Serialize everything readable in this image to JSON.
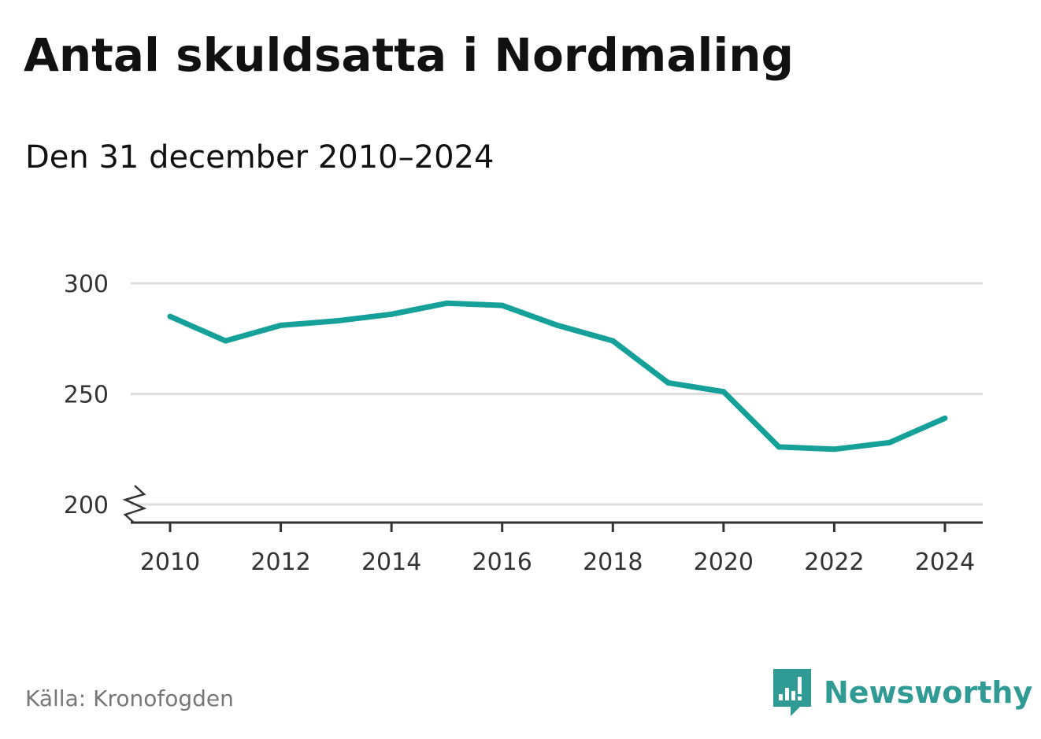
{
  "title": "Antal skuldsatta i Nordmaling",
  "subtitle": "Den 31 december 2010–2024",
  "source": "Källa: Kronofogden",
  "brand": {
    "name": "Newsworthy",
    "icon": "newsworthy-logo-icon",
    "color": "#2f9b94"
  },
  "colors": {
    "line": "#16a09a",
    "grid": "#dddddd",
    "axis": "#333333",
    "text": "#111111"
  },
  "chart_data": {
    "type": "line",
    "x": [
      2010,
      2011,
      2012,
      2013,
      2014,
      2015,
      2016,
      2017,
      2018,
      2019,
      2020,
      2021,
      2022,
      2023,
      2024
    ],
    "series": [
      {
        "values": [
          285,
          274,
          281,
          283,
          286,
          291,
          290,
          281,
          274,
          255,
          251,
          226,
          225,
          228,
          239
        ]
      }
    ],
    "xticks": [
      "2010",
      "2012",
      "2014",
      "2016",
      "2018",
      "2020",
      "2022",
      "2024"
    ],
    "yticks": [
      "200",
      "250",
      "300"
    ],
    "ylim": [
      200,
      300
    ],
    "xlim": [
      2010,
      2024
    ],
    "y_axis_break": true,
    "grid": true,
    "xlabel": "",
    "ylabel": ""
  }
}
